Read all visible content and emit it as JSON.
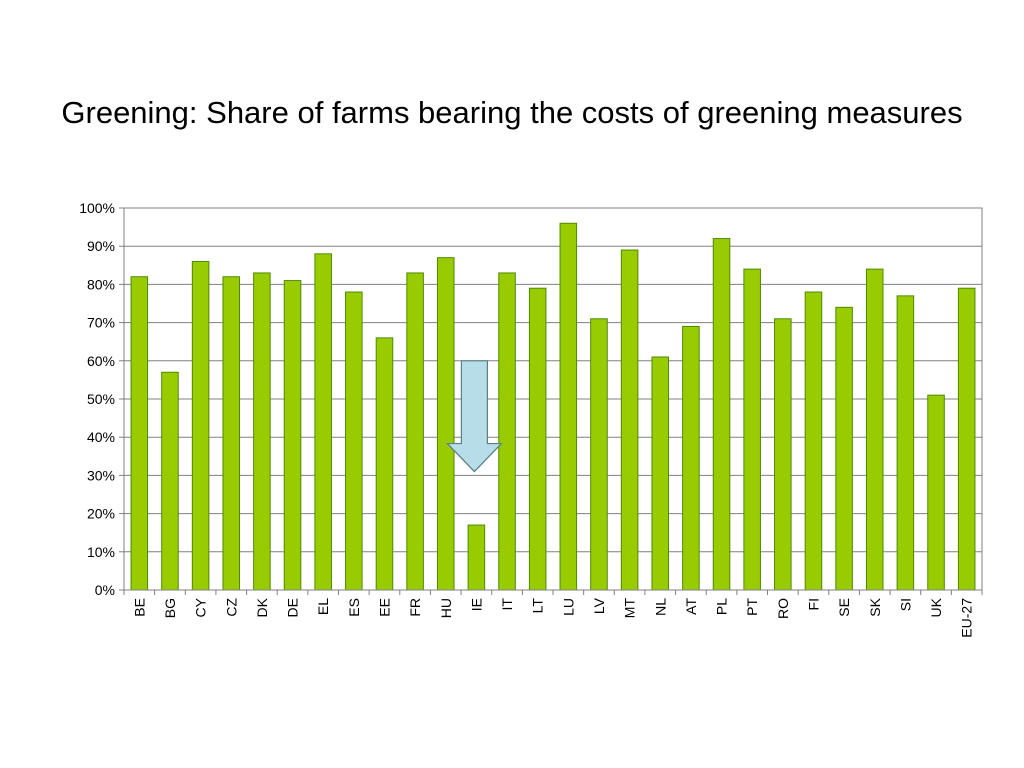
{
  "chart_data": {
    "type": "bar",
    "title": "Greening: Share of farms bearing the costs of greening measures",
    "categories": [
      "BE",
      "BG",
      "CY",
      "CZ",
      "DK",
      "DE",
      "EL",
      "ES",
      "EE",
      "FR",
      "HU",
      "IE",
      "IT",
      "LT",
      "LU",
      "LV",
      "MT",
      "NL",
      "AT",
      "PL",
      "PT",
      "RO",
      "FI",
      "SE",
      "SK",
      "SI",
      "UK",
      "EU-27"
    ],
    "values": [
      82,
      57,
      86,
      82,
      83,
      81,
      88,
      78,
      66,
      83,
      87,
      17,
      83,
      79,
      96,
      71,
      89,
      61,
      69,
      92,
      84,
      71,
      78,
      74,
      84,
      77,
      51,
      79
    ],
    "ylim": [
      0,
      100
    ],
    "yticks": [
      0,
      10,
      20,
      30,
      40,
      50,
      60,
      70,
      80,
      90,
      100
    ],
    "ytick_labels": [
      "0%",
      "10%",
      "20%",
      "30%",
      "40%",
      "50%",
      "60%",
      "70%",
      "80%",
      "90%",
      "100%"
    ],
    "xlabel": "",
    "ylabel": "",
    "grid": true,
    "legend": "none",
    "bar_color": "#99cc00",
    "bar_edge_color": "#4d8a00",
    "annotation": {
      "type": "down-arrow",
      "target_category": "IE",
      "from_value": 60,
      "to_value": 31,
      "fill_color": "#b7dde8"
    }
  }
}
